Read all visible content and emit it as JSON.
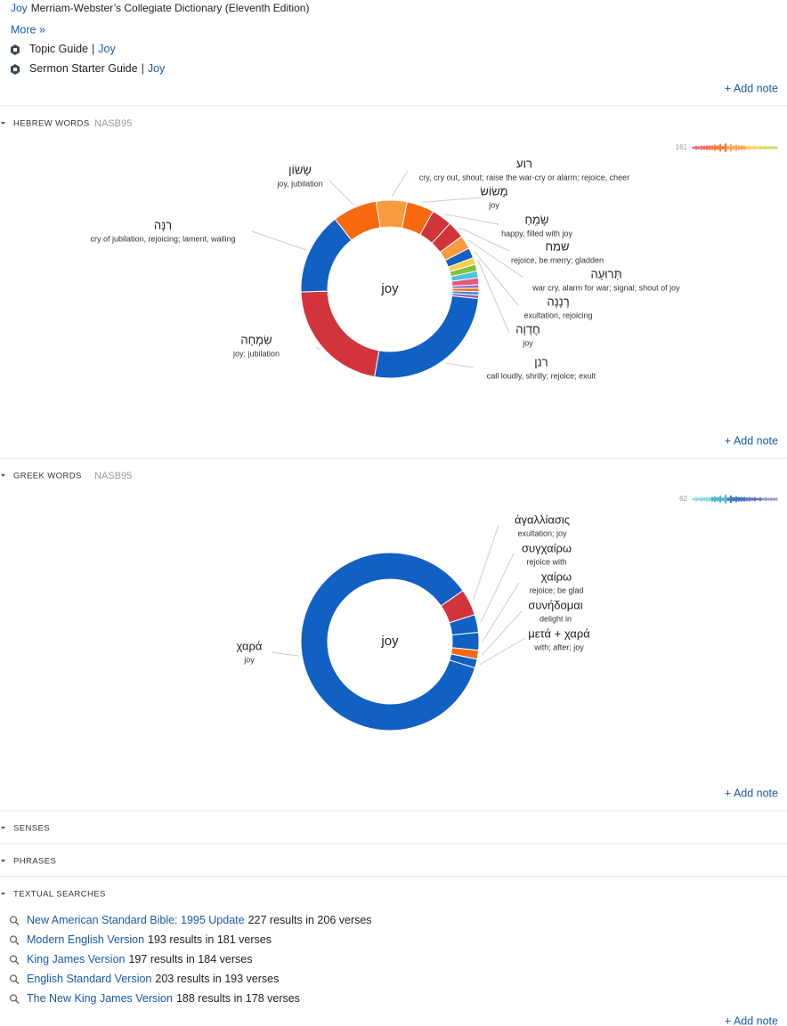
{
  "top": {
    "dictionary": {
      "link": "Joy",
      "text": "Merriam-Webster’s Collegiate Dictionary (Eleventh Edition)"
    },
    "more": "More »",
    "guides": [
      {
        "name": "Topic Guide",
        "sep": "|",
        "link": "Joy"
      },
      {
        "name": "Sermon Starter Guide",
        "sep": "|",
        "link": "Joy"
      }
    ],
    "add_note": "+ Add note"
  },
  "hebrew": {
    "heading": "HEBREW WORDS",
    "version": "NASB95",
    "count": 161,
    "add_note": "+ Add note",
    "chart_data": {
      "type": "donut",
      "center_label": "joy",
      "categories": [
        "רוע",
        "מָשׂוֹשׂ",
        "שָׂמֵחַ",
        "שמח",
        "תְּרוּעָה",
        "רְנָנָה",
        "חֶדְוָה",
        null,
        null,
        null,
        null,
        null,
        null,
        null,
        "רנן",
        "שִׂמְחָה",
        "רִנָּה",
        "שָׂשׂוֹן"
      ],
      "glosses": [
        "cry, cry out, shout; raise the war-cry or alarm; rejoice, cheer",
        "joy",
        "happy, filled with joy",
        "rejoice, be merry; gladden",
        "war cry, alarm for war; signal; shout of joy",
        "exultation, rejoicing",
        "joy",
        null,
        null,
        null,
        null,
        null,
        null,
        null,
        "call loudly, shrilly; rejoice; exult",
        "joy; jubilation",
        "cry of jubilation, rejoicing; lament, wailing",
        "joy, jubilation"
      ],
      "values": [
        9,
        8,
        6,
        5,
        4,
        3,
        2,
        2,
        2,
        2,
        1,
        1,
        1,
        1,
        42,
        35,
        24,
        13
      ],
      "colors": [
        "#f99a3e",
        "#f7690f",
        "#d1343a",
        "#d1343a",
        "#f99a3e",
        "#1160c4",
        "#f5d04a",
        "#80c241",
        "#4fc3d9",
        "#e25b7e",
        "#8c6cc0",
        "#f7690f",
        "#2f8fd8",
        "#9b59b6",
        "#1160c4",
        "#d1343a",
        "#1160c4",
        "#f7690f"
      ]
    }
  },
  "greek": {
    "heading": "GREEK WORDS",
    "version": "NASB95",
    "count": 62,
    "add_note": "+ Add note",
    "chart_data": {
      "type": "donut",
      "center_label": "joy",
      "categories": [
        "ἀγαλλίασις",
        "συγχαίρω",
        "χαίρω",
        "συνήδομαι",
        "μετά + χαρά",
        "χαρά"
      ],
      "glosses": [
        "exultation; joy",
        "rejoice with",
        "rejoice; be glad",
        "delight in",
        "with; after; joy",
        "joy"
      ],
      "values": [
        3,
        2,
        2,
        1,
        1,
        53
      ],
      "colors": [
        "#d1343a",
        "#1160c4",
        "#1160c4",
        "#f7690f",
        "#1160c4",
        "#1160c4"
      ]
    }
  },
  "senses": {
    "heading": "SENSES"
  },
  "phrases": {
    "heading": "PHRASES"
  },
  "searches": {
    "heading": "TEXTUAL SEARCHES",
    "items": [
      {
        "name": "New American Standard Bible: 1995 Update",
        "results": "227 results in 206 verses"
      },
      {
        "name": "Modern English Version",
        "results": "193 results in 181 verses"
      },
      {
        "name": "King James Version",
        "results": "197 results in 184 verses"
      },
      {
        "name": "English Standard Version",
        "results": "203 results in 193 verses"
      },
      {
        "name": "The New King James Version",
        "results": "188 results in 178 verses"
      }
    ],
    "add_note": "+ Add note"
  }
}
